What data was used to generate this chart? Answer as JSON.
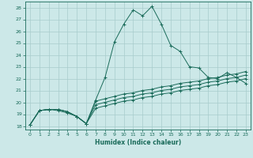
{
  "xlabel": "Humidex (Indice chaleur)",
  "bg_color": "#cce8e8",
  "grid_color": "#a8cccc",
  "line_color": "#1a6b5a",
  "xlim": [
    -0.5,
    23.5
  ],
  "ylim": [
    17.7,
    28.5
  ],
  "xticks": [
    0,
    1,
    2,
    3,
    4,
    5,
    6,
    7,
    8,
    9,
    10,
    11,
    12,
    13,
    14,
    15,
    16,
    17,
    18,
    19,
    20,
    21,
    22,
    23
  ],
  "yticks": [
    18,
    19,
    20,
    21,
    22,
    23,
    24,
    25,
    26,
    27,
    28
  ],
  "line1_x": [
    0,
    1,
    2,
    3,
    4,
    5,
    6,
    7,
    8,
    9,
    10,
    11,
    12,
    13,
    14,
    15,
    16,
    17,
    18,
    19,
    20,
    21,
    22,
    23
  ],
  "line1_y": [
    18.1,
    19.3,
    19.4,
    19.3,
    19.1,
    18.8,
    18.2,
    20.2,
    22.1,
    25.1,
    26.6,
    27.8,
    27.3,
    28.1,
    26.6,
    24.8,
    24.3,
    23.0,
    22.9,
    22.1,
    22.0,
    22.5,
    22.1,
    21.6
  ],
  "line2_x": [
    0,
    1,
    2,
    3,
    4,
    5,
    6,
    7,
    8,
    9,
    10,
    11,
    12,
    13,
    14,
    15,
    16,
    17,
    18,
    19,
    20,
    21,
    22,
    23
  ],
  "line2_y": [
    18.1,
    19.3,
    19.4,
    19.4,
    19.2,
    18.8,
    18.2,
    20.1,
    20.3,
    20.5,
    20.7,
    20.8,
    21.0,
    21.1,
    21.3,
    21.4,
    21.6,
    21.7,
    21.8,
    22.0,
    22.1,
    22.3,
    22.4,
    22.6
  ],
  "line3_x": [
    0,
    1,
    2,
    3,
    4,
    5,
    6,
    7,
    8,
    9,
    10,
    11,
    12,
    13,
    14,
    15,
    16,
    17,
    18,
    19,
    20,
    21,
    22,
    23
  ],
  "line3_y": [
    18.1,
    19.3,
    19.4,
    19.4,
    19.2,
    18.8,
    18.2,
    19.8,
    20.0,
    20.2,
    20.4,
    20.5,
    20.7,
    20.8,
    21.0,
    21.1,
    21.3,
    21.4,
    21.5,
    21.7,
    21.8,
    22.0,
    22.1,
    22.3
  ],
  "line4_x": [
    0,
    1,
    2,
    3,
    4,
    5,
    6,
    7,
    8,
    9,
    10,
    11,
    12,
    13,
    14,
    15,
    16,
    17,
    18,
    19,
    20,
    21,
    22,
    23
  ],
  "line4_y": [
    18.1,
    19.3,
    19.4,
    19.4,
    19.2,
    18.8,
    18.2,
    19.5,
    19.7,
    19.9,
    20.1,
    20.2,
    20.4,
    20.5,
    20.7,
    20.8,
    21.0,
    21.1,
    21.2,
    21.4,
    21.5,
    21.7,
    21.8,
    22.0
  ]
}
